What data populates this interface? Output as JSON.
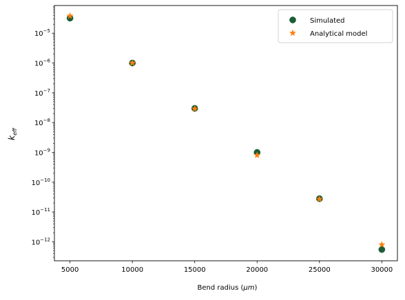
{
  "chart_data": {
    "type": "scatter",
    "xlabel_main": "Bend radius (",
    "xlabel_unit": "μm",
    "xlabel_close": ")",
    "ylabel_base": "k",
    "ylabel_sub": "eff",
    "x_ticks": [
      5000,
      10000,
      15000,
      20000,
      25000,
      30000
    ],
    "x_tick_labels": [
      "5000",
      "10000",
      "15000",
      "20000",
      "25000",
      "30000"
    ],
    "xlim": [
      3750,
      31250
    ],
    "y_scale": "log",
    "ylim": [
      2.3e-13,
      8.5e-05
    ],
    "y_tick_exponents": [
      -12,
      -11,
      -10,
      -9,
      -8,
      -7,
      -6,
      -5
    ],
    "y_tick_base": "10",
    "legend_position": "top-right",
    "grid": false,
    "series": [
      {
        "name": "Simulated",
        "marker": "circle",
        "color": "#1b5e35",
        "x": [
          5000,
          10000,
          15000,
          20000,
          25000,
          30000
        ],
        "y": [
          3.2e-05,
          1e-06,
          3e-08,
          1e-09,
          2.8e-11,
          5.5e-13
        ]
      },
      {
        "name": "Analytical model",
        "marker": "star",
        "color": "#ff7f0e",
        "x": [
          5000,
          10000,
          15000,
          20000,
          25000,
          30000
        ],
        "y": [
          3.8e-05,
          1e-06,
          2.9e-08,
          8e-10,
          2.7e-11,
          8e-13
        ]
      }
    ]
  }
}
